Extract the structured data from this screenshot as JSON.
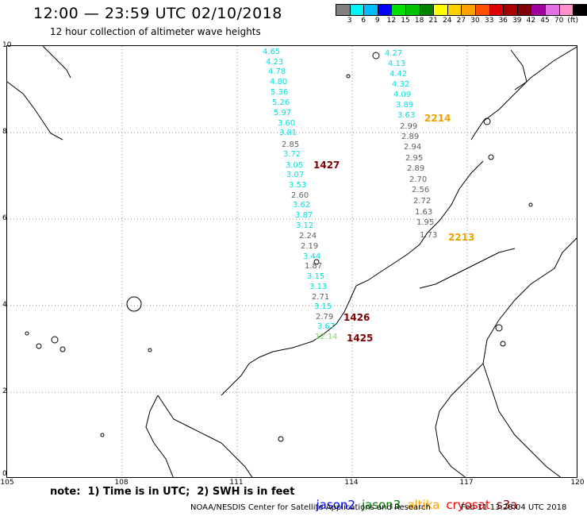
{
  "header": {
    "title": "12:00 — 23:59 UTC 02/10/2018",
    "subtitle": "12 hour collection of altimeter wave heights"
  },
  "color_scale": {
    "colors": [
      "#7f7f7f",
      "#00f5f5",
      "#00bcff",
      "#0000ff",
      "#00e000",
      "#00c000",
      "#008000",
      "#ffff00",
      "#ffd000",
      "#ffa000",
      "#ff5000",
      "#dd0000",
      "#aa0000",
      "#800000",
      "#a000a0",
      "#e070e0",
      "#ff90c8",
      "#000000"
    ],
    "labels": [
      "3",
      "6",
      "9",
      "12",
      "15",
      "18",
      "21",
      "24",
      "27",
      "30",
      "33",
      "36",
      "39",
      "42",
      "45",
      "70",
      "(ft)"
    ]
  },
  "axes": {
    "y_labels": [
      "10",
      "8",
      "6",
      "4",
      "2",
      "0"
    ],
    "x_labels": [
      "105",
      "108",
      "111",
      "114",
      "117",
      "120"
    ]
  },
  "observations": [
    {
      "v": "4.65",
      "c": "#00e0e0"
    },
    {
      "v": "4.23",
      "c": "#00e0e0"
    },
    {
      "v": "4.78",
      "c": "#00e0e0"
    },
    {
      "v": "4.80",
      "c": "#00e0e0"
    },
    {
      "v": "5.36",
      "c": "#00e0e0"
    },
    {
      "v": "5.26",
      "c": "#00e0e0"
    },
    {
      "v": "5.97",
      "c": "#00e0e0"
    },
    {
      "v": "3.60",
      "c": "#00e0e0"
    },
    {
      "v": "3.81",
      "c": "#00e0e0"
    },
    {
      "v": "2.85",
      "c": "#606060"
    },
    {
      "v": "3.72",
      "c": "#00e0e0"
    },
    {
      "v": "3.05",
      "c": "#00e0e0"
    },
    {
      "v": "3.07",
      "c": "#00e0e0"
    },
    {
      "v": "3.53",
      "c": "#00e0e0"
    },
    {
      "v": "2.60",
      "c": "#606060"
    },
    {
      "v": "3.62",
      "c": "#00e0e0"
    },
    {
      "v": "3.87",
      "c": "#00e0e0"
    },
    {
      "v": "3.12",
      "c": "#00e0e0"
    },
    {
      "v": "2.24",
      "c": "#606060"
    },
    {
      "v": "2.19",
      "c": "#606060"
    },
    {
      "v": "3.44",
      "c": "#00e0e0"
    },
    {
      "v": "1.87",
      "c": "#606060"
    },
    {
      "v": "3.15",
      "c": "#00e0e0"
    },
    {
      "v": "3.13",
      "c": "#00e0e0"
    },
    {
      "v": "2.71",
      "c": "#606060"
    },
    {
      "v": "3.15",
      "c": "#00e0e0"
    },
    {
      "v": "2.79",
      "c": "#606060"
    },
    {
      "v": "3.67",
      "c": "#00e0e0"
    },
    {
      "v": "12.14",
      "c": "#80e060"
    },
    {
      "v": "4.27",
      "c": "#00e0e0"
    },
    {
      "v": "4.13",
      "c": "#00e0e0"
    },
    {
      "v": "4.42",
      "c": "#00e0e0"
    },
    {
      "v": "4.32",
      "c": "#00e0e0"
    },
    {
      "v": "4.09",
      "c": "#00e0e0"
    },
    {
      "v": "3.89",
      "c": "#00e0e0"
    },
    {
      "v": "3.63",
      "c": "#00e0e0"
    },
    {
      "v": "2.99",
      "c": "#606060"
    },
    {
      "v": "2.89",
      "c": "#606060"
    },
    {
      "v": "2.94",
      "c": "#606060"
    },
    {
      "v": "2.95",
      "c": "#606060"
    },
    {
      "v": "2.89",
      "c": "#606060"
    },
    {
      "v": "2.70",
      "c": "#606060"
    },
    {
      "v": "2.56",
      "c": "#606060"
    },
    {
      "v": "2.72",
      "c": "#606060"
    },
    {
      "v": "1.63",
      "c": "#606060"
    },
    {
      "v": "1.95",
      "c": "#606060"
    },
    {
      "v": "1.73",
      "c": "#606060"
    }
  ],
  "pass_labels": [
    {
      "t": "2214",
      "c": "#f0a000"
    },
    {
      "t": "1427",
      "c": "#800000"
    },
    {
      "t": "2213",
      "c": "#f0a000"
    },
    {
      "t": "1426",
      "c": "#800000"
    },
    {
      "t": "1425",
      "c": "#800000"
    }
  ],
  "footer": {
    "note": "note:  1) Time is in UTC;  2) SWH is in feet",
    "legend": [
      {
        "name": "jason2",
        "color": "#0000ff"
      },
      {
        "name": "jason3",
        "color": "#008000"
      },
      {
        "name": "altika",
        "color": "#ffa000"
      },
      {
        "name": "cryosat",
        "color": "#ff0000"
      },
      {
        "name": "s3a",
        "color": "#800000"
      }
    ],
    "credit": "NOAA/NESDIS Center for Satellite Applications and Research",
    "timestamp": "Feb 11 13:28:04 UTC 2018"
  }
}
